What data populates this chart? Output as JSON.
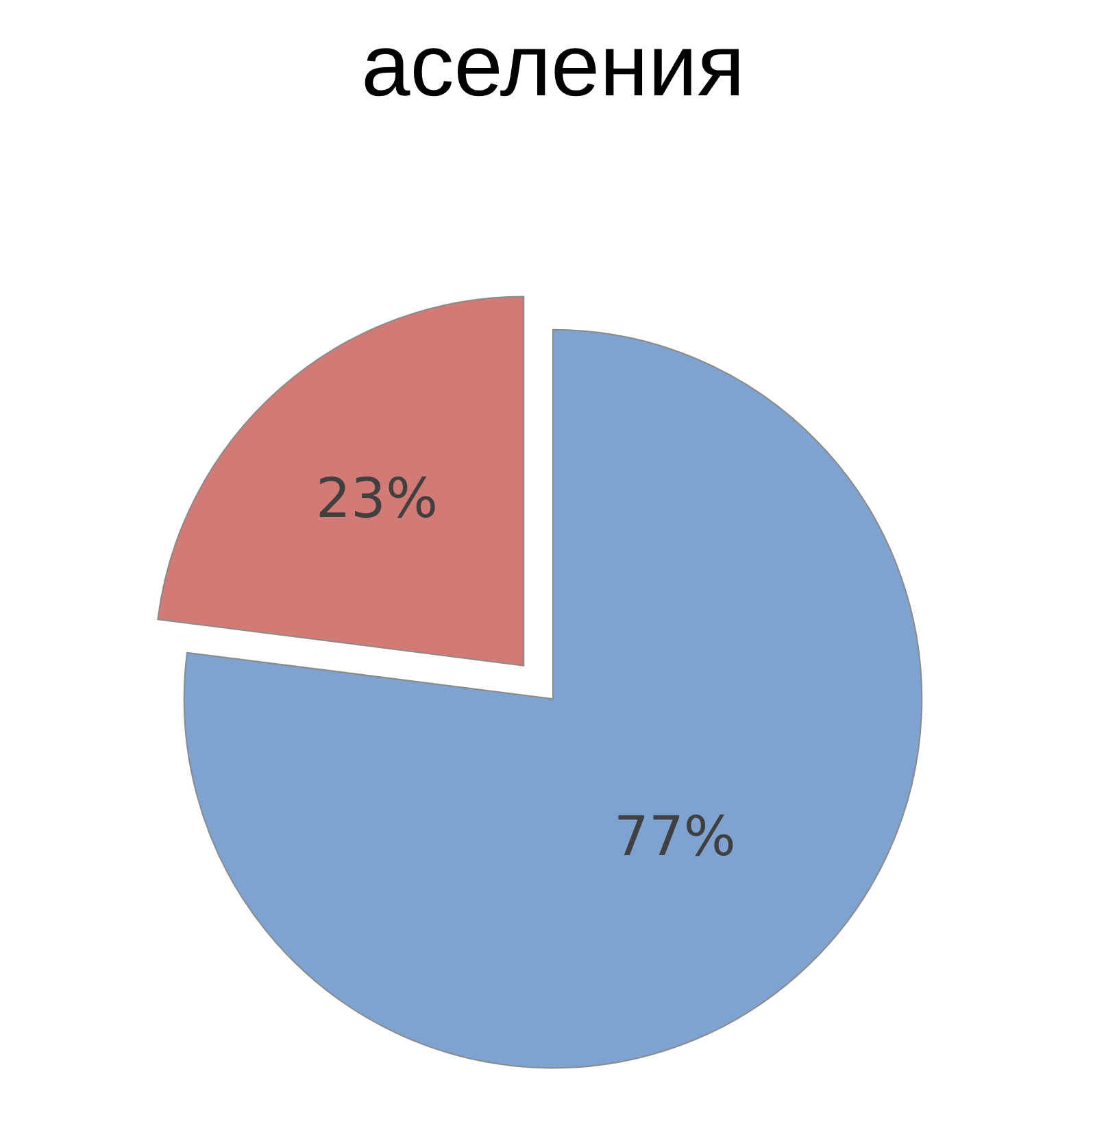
{
  "chart_data": {
    "type": "pie",
    "title": "аселения",
    "categories": [
      null,
      null
    ],
    "values": [
      77,
      23
    ],
    "colors": [
      "#7ea3d0",
      "#d27a76"
    ],
    "value_labels": [
      "77%",
      "23%"
    ],
    "legend": false
  }
}
